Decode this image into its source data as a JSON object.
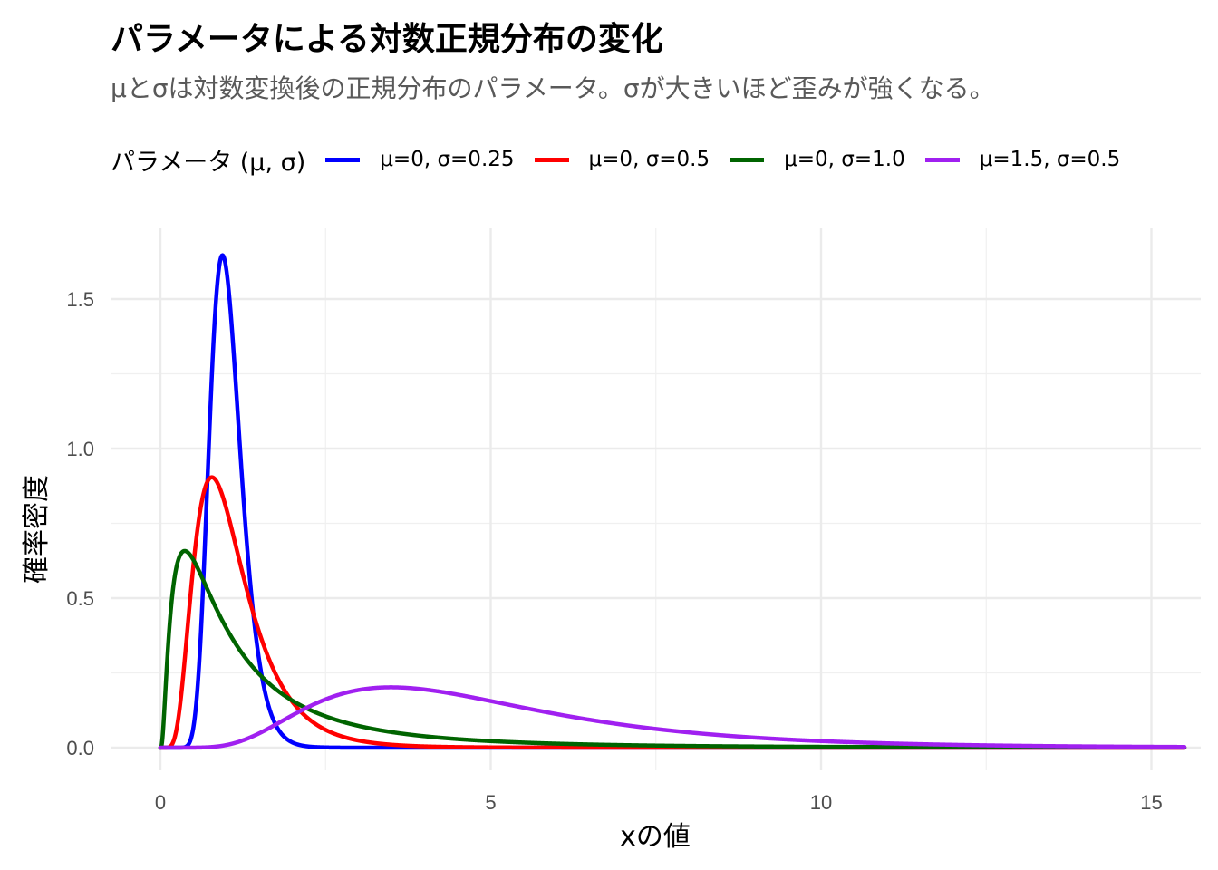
{
  "chart_data": {
    "type": "line",
    "title": "パラメータによる対数正規分布の変化",
    "subtitle": "μとσは対数変換後の正規分布のパラメータ。σが大きいほど歪みが強くなる。",
    "xlabel": "xの値",
    "ylabel": "確率密度",
    "xlim": [
      0,
      15.5
    ],
    "ylim": [
      0,
      1.65
    ],
    "x_ticks": [
      "0",
      "5",
      "10",
      "15"
    ],
    "y_ticks": [
      "0.0",
      "0.5",
      "1.0",
      "1.5"
    ],
    "grid": true,
    "legend_title": "パラメータ (μ, σ)",
    "legend_position": "top",
    "series": [
      {
        "name": "μ=0, σ=0.25",
        "color": "#0000ff",
        "mu": 0,
        "sigma": 0.25,
        "peak": {
          "x": 0.94,
          "y": 1.64
        }
      },
      {
        "name": "μ=0, σ=0.5",
        "color": "#ff0000",
        "mu": 0,
        "sigma": 0.5,
        "peak": {
          "x": 0.78,
          "y": 0.91
        }
      },
      {
        "name": "μ=0, σ=1.0",
        "color": "#006400",
        "mu": 0,
        "sigma": 1.0,
        "peak": {
          "x": 0.37,
          "y": 0.66
        }
      },
      {
        "name": "μ=1.5, σ=0.5",
        "color": "#a020f0",
        "mu": 1.5,
        "sigma": 0.5,
        "peak": {
          "x": 3.49,
          "y": 0.21
        }
      }
    ]
  }
}
